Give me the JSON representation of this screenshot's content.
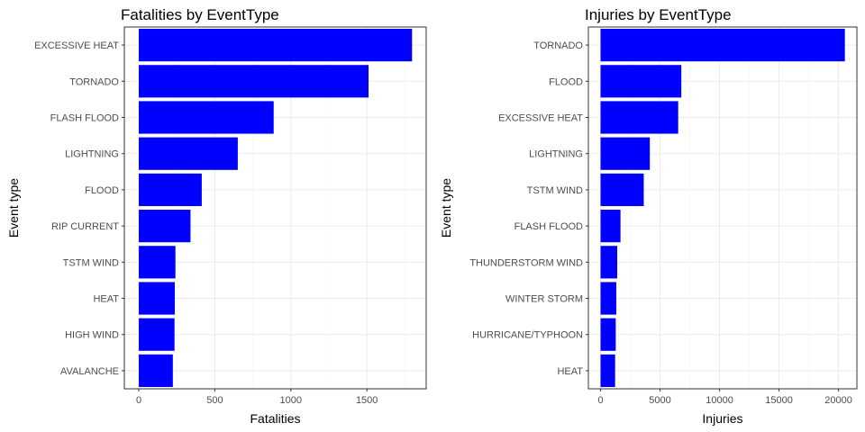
{
  "chart_data": [
    {
      "type": "bar",
      "orientation": "horizontal",
      "title": "Fatalities by EventType",
      "xlabel": "Fatalities",
      "ylabel": "Event type",
      "categories": [
        "EXCESSIVE HEAT",
        "TORNADO",
        "FLASH FLOOD",
        "LIGHTNING",
        "FLOOD",
        "RIP CURRENT",
        "TSTM WIND",
        "HEAT",
        "HIGH WIND",
        "AVALANCHE"
      ],
      "values": [
        1797,
        1511,
        887,
        651,
        414,
        340,
        241,
        237,
        235,
        224
      ],
      "xlim": [
        -95,
        1890
      ],
      "xticks": [
        0,
        500,
        1000,
        1500
      ],
      "xtick_labels": [
        "0",
        "500",
        "1000",
        "1500"
      ],
      "grid": true,
      "bar_color": "#0000FF"
    },
    {
      "type": "bar",
      "orientation": "horizontal",
      "title": "Injuries by EventType",
      "xlabel": "Injuries",
      "ylabel": "Event type",
      "categories": [
        "TORNADO",
        "FLOOD",
        "EXCESSIVE HEAT",
        "LIGHTNING",
        "TSTM WIND",
        "FLASH FLOOD",
        "THUNDERSTORM WIND",
        "WINTER STORM",
        "HURRICANE/TYPHOON",
        "HEAT"
      ],
      "values": [
        20540,
        6789,
        6525,
        4141,
        3631,
        1674,
        1400,
        1321,
        1275,
        1222
      ],
      "xlim": [
        -1025,
        21550
      ],
      "xticks": [
        0,
        5000,
        10000,
        15000,
        20000
      ],
      "xtick_labels": [
        "0",
        "5000",
        "10000",
        "15000",
        "20000"
      ],
      "grid": true,
      "bar_color": "#0000FF"
    }
  ]
}
